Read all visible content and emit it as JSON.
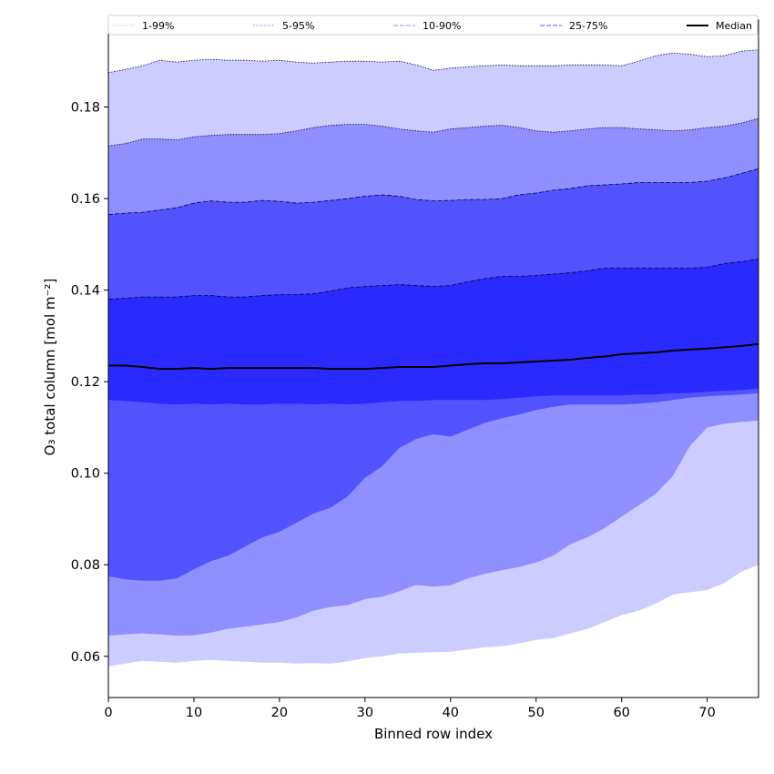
{
  "chart_data": {
    "type": "area",
    "xlabel": "Binned row index",
    "ylabel": "O₃ total column [mol m⁻²]",
    "xlim": [
      0,
      76
    ],
    "ylim": [
      0.051,
      0.199
    ],
    "xticks": [
      0,
      10,
      20,
      30,
      40,
      50,
      60,
      70
    ],
    "yticks": [
      0.06,
      0.08,
      0.1,
      0.12,
      0.14,
      0.16,
      0.18
    ],
    "ytick_labels": [
      "0.06",
      "0.08",
      "0.10",
      "0.12",
      "0.14",
      "0.16",
      "0.18"
    ],
    "grid": false,
    "legend_position": "top",
    "x": [
      0,
      2,
      4,
      6,
      8,
      10,
      12,
      14,
      16,
      18,
      20,
      22,
      24,
      26,
      28,
      30,
      32,
      34,
      36,
      38,
      40,
      42,
      44,
      46,
      48,
      50,
      52,
      54,
      56,
      58,
      60,
      62,
      64,
      66,
      68,
      70,
      72,
      74,
      76
    ],
    "bands": [
      {
        "name": "1-99%",
        "fill": "#ccccff",
        "line_color": "#ccccff",
        "line_style": "dotted",
        "lower": [
          0.0578,
          0.0584,
          0.059,
          0.0588,
          0.0586,
          0.059,
          0.0592,
          0.059,
          0.0588,
          0.0586,
          0.0586,
          0.0584,
          0.0585,
          0.0584,
          0.0589,
          0.0596,
          0.06,
          0.0606,
          0.0608,
          0.0609,
          0.061,
          0.0615,
          0.062,
          0.0622,
          0.0628,
          0.0636,
          0.064,
          0.065,
          0.066,
          0.0675,
          0.069,
          0.07,
          0.0715,
          0.0735,
          0.074,
          0.0745,
          0.076,
          0.0785,
          0.08
        ],
        "upper": [
          0.1875,
          0.1882,
          0.189,
          0.1902,
          0.1898,
          0.1902,
          0.1904,
          0.1902,
          0.1902,
          0.19,
          0.1902,
          0.1898,
          0.1896,
          0.1898,
          0.19,
          0.19,
          0.1898,
          0.19,
          0.1892,
          0.188,
          0.1885,
          0.1888,
          0.189,
          0.1892,
          0.189,
          0.189,
          0.189,
          0.1892,
          0.1892,
          0.1892,
          0.189,
          0.19,
          0.1912,
          0.1918,
          0.1915,
          0.191,
          0.1912,
          0.1922,
          0.1925
        ]
      },
      {
        "name": "5-95%",
        "fill": "#8f8fff",
        "line_color": "#8f8fff",
        "line_style": "dotted",
        "lower": [
          0.0645,
          0.0648,
          0.065,
          0.0648,
          0.0645,
          0.0646,
          0.0652,
          0.066,
          0.0665,
          0.067,
          0.0675,
          0.0685,
          0.07,
          0.0708,
          0.0712,
          0.0725,
          0.073,
          0.0742,
          0.0756,
          0.0752,
          0.0755,
          0.077,
          0.078,
          0.0788,
          0.0795,
          0.0805,
          0.082,
          0.0845,
          0.086,
          0.088,
          0.0905,
          0.093,
          0.0955,
          0.0995,
          0.106,
          0.11,
          0.1108,
          0.1112,
          0.1115
        ],
        "upper": [
          0.1715,
          0.172,
          0.173,
          0.173,
          0.1728,
          0.1735,
          0.1738,
          0.174,
          0.174,
          0.174,
          0.1742,
          0.1748,
          0.1755,
          0.176,
          0.1762,
          0.1762,
          0.1758,
          0.1752,
          0.1748,
          0.1745,
          0.1752,
          0.1755,
          0.1758,
          0.176,
          0.1755,
          0.1748,
          0.1745,
          0.1748,
          0.1752,
          0.1755,
          0.1755,
          0.1752,
          0.175,
          0.1748,
          0.175,
          0.1755,
          0.1758,
          0.1765,
          0.1775
        ]
      },
      {
        "name": "10-90%",
        "fill": "#5252ff",
        "line_color": "#8f8fff",
        "line_style": "dashed",
        "lower": [
          0.0775,
          0.0768,
          0.0765,
          0.0765,
          0.077,
          0.079,
          0.0808,
          0.082,
          0.084,
          0.086,
          0.0872,
          0.0892,
          0.0912,
          0.0925,
          0.095,
          0.099,
          0.1015,
          0.1055,
          0.1075,
          0.1085,
          0.108,
          0.1095,
          0.111,
          0.112,
          0.1128,
          0.1138,
          0.1145,
          0.115,
          0.115,
          0.115,
          0.115,
          0.1152,
          0.1155,
          0.116,
          0.1165,
          0.1168,
          0.117,
          0.1172,
          0.1175
        ],
        "upper": [
          0.1565,
          0.1568,
          0.157,
          0.1575,
          0.158,
          0.159,
          0.1595,
          0.1592,
          0.1592,
          0.1596,
          0.1594,
          0.159,
          0.1592,
          0.1596,
          0.16,
          0.1605,
          0.1608,
          0.1605,
          0.1598,
          0.1595,
          0.1596,
          0.1598,
          0.1598,
          0.16,
          0.1608,
          0.1612,
          0.1618,
          0.1622,
          0.1628,
          0.163,
          0.1632,
          0.1635,
          0.1635,
          0.1635,
          0.1635,
          0.1638,
          0.1645,
          0.1655,
          0.1665
        ]
      },
      {
        "name": "25-75%",
        "fill": "#2a2aff",
        "line_color": "#5252ff",
        "line_style": "dashed",
        "lower": [
          0.116,
          0.1158,
          0.1155,
          0.1152,
          0.115,
          0.1152,
          0.115,
          0.1152,
          0.115,
          0.115,
          0.1152,
          0.1152,
          0.115,
          0.1152,
          0.115,
          0.1152,
          0.1155,
          0.1158,
          0.1158,
          0.116,
          0.116,
          0.116,
          0.116,
          0.1162,
          0.1165,
          0.1168,
          0.117,
          0.117,
          0.117,
          0.117,
          0.117,
          0.1172,
          0.1172,
          0.1175,
          0.1175,
          0.1178,
          0.118,
          0.1182,
          0.1185
        ],
        "upper": [
          0.138,
          0.1382,
          0.1385,
          0.1385,
          0.1385,
          0.1388,
          0.1388,
          0.1385,
          0.1385,
          0.1388,
          0.139,
          0.139,
          0.1392,
          0.1398,
          0.1405,
          0.1408,
          0.141,
          0.1412,
          0.141,
          0.1408,
          0.141,
          0.1418,
          0.1425,
          0.143,
          0.143,
          0.1432,
          0.1435,
          0.1438,
          0.1442,
          0.1448,
          0.1448,
          0.1448,
          0.1448,
          0.1448,
          0.1448,
          0.145,
          0.1458,
          0.1462,
          0.1468
        ]
      }
    ],
    "series": [
      {
        "name": "Median",
        "color": "#000000",
        "values": [
          0.1235,
          0.1235,
          0.1232,
          0.1228,
          0.1228,
          0.123,
          0.1228,
          0.123,
          0.123,
          0.123,
          0.123,
          0.123,
          0.123,
          0.1228,
          0.1228,
          0.1228,
          0.123,
          0.1232,
          0.1232,
          0.1232,
          0.1235,
          0.1238,
          0.124,
          0.124,
          0.1242,
          0.1244,
          0.1246,
          0.1248,
          0.1252,
          0.1255,
          0.126,
          0.1262,
          0.1264,
          0.1268,
          0.127,
          0.1272,
          0.1275,
          0.1278,
          0.1282
        ]
      }
    ]
  }
}
